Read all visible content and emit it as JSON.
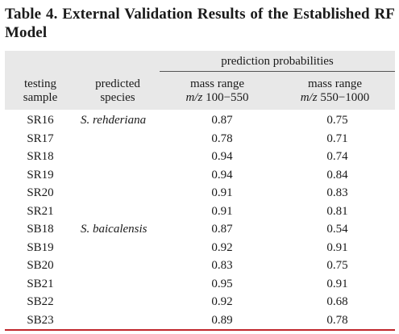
{
  "title": {
    "line1": "Table 4. External Validation Results of the Established RF",
    "line2": "Model"
  },
  "headers": {
    "group": "prediction probabilities",
    "sample_line1": "testing",
    "sample_line2": "sample",
    "species_line1": "predicted",
    "species_line2": "species",
    "col1_line1": "mass range",
    "col1_mz": "m/z",
    "col1_range": "100−550",
    "col2_line1": "mass range",
    "col2_mz": "m/z",
    "col2_range": "550−1000"
  },
  "rows": [
    {
      "sample": "SR16",
      "species": "S. rehderiana",
      "p1": "0.87",
      "p2": "0.75"
    },
    {
      "sample": "SR17",
      "species": "",
      "p1": "0.78",
      "p2": "0.71"
    },
    {
      "sample": "SR18",
      "species": "",
      "p1": "0.94",
      "p2": "0.74"
    },
    {
      "sample": "SR19",
      "species": "",
      "p1": "0.94",
      "p2": "0.84"
    },
    {
      "sample": "SR20",
      "species": "",
      "p1": "0.91",
      "p2": "0.83"
    },
    {
      "sample": "SR21",
      "species": "",
      "p1": "0.91",
      "p2": "0.81"
    },
    {
      "sample": "SB18",
      "species": "S. baicalensis",
      "p1": "0.87",
      "p2": "0.54"
    },
    {
      "sample": "SB19",
      "species": "",
      "p1": "0.92",
      "p2": "0.91"
    },
    {
      "sample": "SB20",
      "species": "",
      "p1": "0.83",
      "p2": "0.75"
    },
    {
      "sample": "SB21",
      "species": "",
      "p1": "0.95",
      "p2": "0.91"
    },
    {
      "sample": "SB22",
      "species": "",
      "p1": "0.92",
      "p2": "0.68"
    },
    {
      "sample": "SB23",
      "species": "",
      "p1": "0.89",
      "p2": "0.78"
    }
  ]
}
